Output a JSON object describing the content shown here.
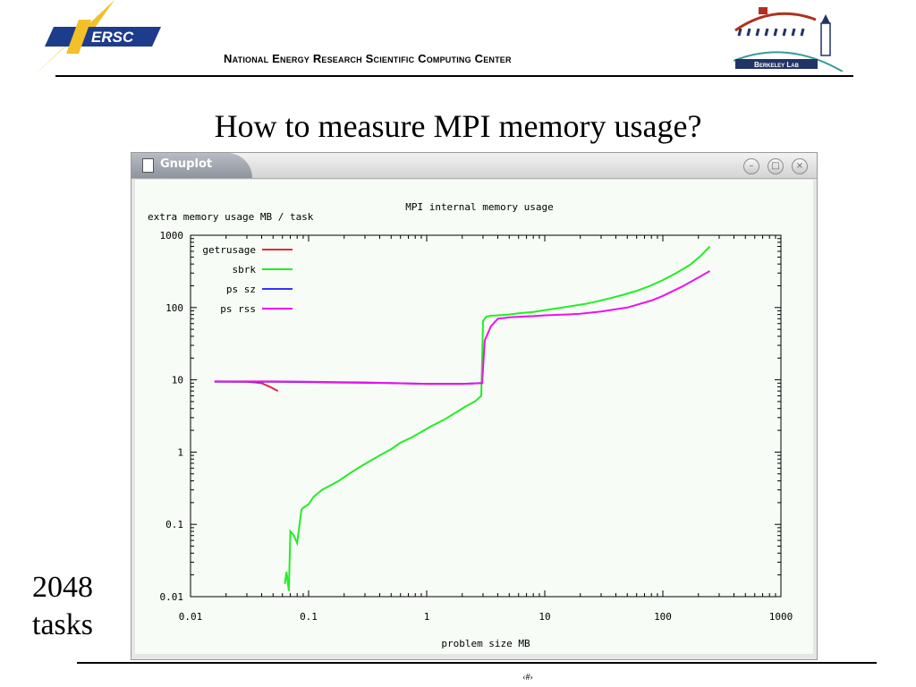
{
  "header": {
    "nersc_logo_text": "ERSC",
    "title": "National Energy Research Scientific Computing Center",
    "berkeley_logo_text": "Berkeley Lab"
  },
  "slide": {
    "title": "How to measure MPI memory usage?",
    "side_label_line1": "2048",
    "side_label_line2": "tasks",
    "page_number": "‹#›"
  },
  "window": {
    "title": "Gnuplot"
  },
  "colors": {
    "getrusage": "#e8253e",
    "sbrk": "#22ee22",
    "ps_sz": "#3333ff",
    "ps_rss": "#ee11ee",
    "plot_background": "#f7fcf7"
  },
  "chart_data": {
    "type": "line",
    "title": "MPI internal memory usage",
    "xlabel": "problem size MB",
    "ylabel": "extra memory usage MB / task",
    "x_scale": "log",
    "y_scale": "log",
    "xlim": [
      0.01,
      1000
    ],
    "ylim": [
      0.01,
      1000
    ],
    "x_ticks": [
      0.01,
      0.1,
      1,
      10,
      100,
      1000
    ],
    "x_tick_labels": [
      "0.01",
      "0.1",
      "1",
      "10",
      "100",
      "1000"
    ],
    "y_ticks": [
      0.01,
      0.1,
      1,
      10,
      100,
      1000
    ],
    "y_tick_labels": [
      "0.01",
      "0.1",
      "1",
      "10",
      "100",
      "1000"
    ],
    "grid": false,
    "legend": "top-left",
    "series": [
      {
        "name": "getrusage",
        "x": [
          0.016,
          0.03,
          0.04,
          0.047,
          0.055
        ],
        "y": [
          9.5,
          9.4,
          9.0,
          8.0,
          7.0
        ]
      },
      {
        "name": "sbrk",
        "x": [
          0.063,
          0.065,
          0.068,
          0.07,
          0.075,
          0.08,
          0.087,
          0.09,
          0.1,
          0.11,
          0.13,
          0.15,
          0.18,
          0.22,
          0.27,
          0.33,
          0.4,
          0.5,
          0.6,
          0.75,
          0.9,
          1.1,
          1.4,
          1.7,
          2.1,
          2.6,
          2.9,
          3.0,
          3.2,
          3.5,
          4.0,
          5.0,
          6.0,
          8.0,
          10,
          13,
          17,
          22,
          28,
          36,
          46,
          60,
          78,
          100,
          130,
          170,
          210,
          250
        ],
        "y": [
          0.015,
          0.022,
          0.012,
          0.08,
          0.07,
          0.055,
          0.16,
          0.17,
          0.19,
          0.24,
          0.3,
          0.34,
          0.4,
          0.5,
          0.62,
          0.75,
          0.9,
          1.1,
          1.35,
          1.6,
          1.9,
          2.3,
          2.8,
          3.4,
          4.2,
          5.1,
          6.0,
          65,
          75,
          77,
          78,
          80,
          83,
          87,
          92,
          98,
          105,
          112,
          122,
          135,
          150,
          170,
          200,
          240,
          300,
          390,
          520,
          700
        ]
      },
      {
        "name": "ps sz",
        "x": [
          0.016,
          0.05,
          0.1,
          0.5,
          1,
          2,
          2.95
        ],
        "y": [
          9.4,
          9.4,
          9.3,
          9.0,
          8.8,
          8.8,
          9.0
        ]
      },
      {
        "name": "ps rss",
        "x": [
          0.016,
          0.05,
          0.1,
          0.3,
          0.5,
          1,
          2,
          2.95,
          3.1,
          3.5,
          4.0,
          5.0,
          6.5,
          8,
          10,
          15,
          20,
          30,
          50,
          80,
          100,
          150,
          200,
          250
        ],
        "y": [
          9.5,
          9.5,
          9.4,
          9.2,
          9.0,
          8.8,
          8.8,
          9.0,
          35,
          55,
          70,
          73,
          75,
          76,
          78,
          80,
          82,
          88,
          100,
          125,
          145,
          200,
          260,
          320
        ]
      }
    ]
  }
}
